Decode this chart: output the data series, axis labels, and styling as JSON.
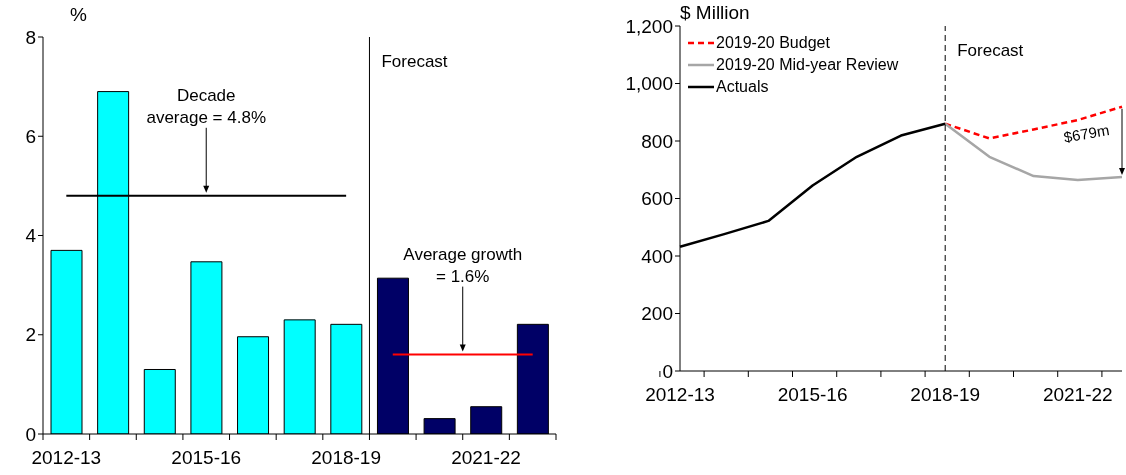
{
  "chart_data": [
    {
      "type": "bar",
      "ylabel": "%",
      "categories": [
        "2012-13",
        null,
        null,
        "2015-16",
        null,
        null,
        "2018-19",
        null,
        null,
        "2021-22",
        null
      ],
      "values": [
        3.7,
        6.9,
        1.3,
        3.47,
        1.96,
        2.3,
        2.21,
        3.14,
        0.31,
        0.55,
        2.21
      ],
      "colors": [
        "#00ffff",
        "#00ffff",
        "#00ffff",
        "#00ffff",
        "#00ffff",
        "#00ffff",
        "#00ffff",
        "#000066",
        "#000066",
        "#000066",
        "#000066"
      ],
      "ylim": [
        0,
        8
      ],
      "yticks": [
        0,
        2,
        4,
        6,
        8
      ],
      "ref_lines": [
        {
          "axis": "y",
          "value": 4.8,
          "label": "Decade\naverage = 4.8%",
          "color": "#000000"
        },
        {
          "axis": "y",
          "value": 1.6,
          "label": "Average growth\n= 1.6%",
          "color": "#ff0000"
        }
      ],
      "annotations": [
        "Forecast"
      ]
    },
    {
      "type": "line",
      "ylabel": "$ Million",
      "categories": [
        "2012-13",
        null,
        null,
        "2015-16",
        null,
        null,
        "2018-19",
        null,
        null,
        "2021-22",
        null
      ],
      "series": [
        {
          "name": "2019-20 Budget",
          "color": "#ff0000",
          "line_style": "dashed",
          "values": [
            null,
            null,
            null,
            null,
            null,
            null,
            860,
            809,
            840,
            873,
            919
          ]
        },
        {
          "name": "2019-20 Mid-year Review",
          "color": "#a6a6a6",
          "line_style": "solid",
          "values": [
            null,
            null,
            null,
            null,
            null,
            null,
            860,
            745,
            678,
            664,
            675
          ]
        },
        {
          "name": "Actuals",
          "color": "#000000",
          "line_style": "solid",
          "values": [
            432,
            476,
            522,
            645,
            745,
            819,
            860,
            null,
            null,
            null,
            null
          ]
        }
      ],
      "ylim": [
        0,
        1200
      ],
      "yticks": [
        0,
        200,
        400,
        600,
        800,
        {
          "value": 1000,
          "label": "1,000"
        },
        {
          "value": 1200,
          "label": "1,200"
        }
      ],
      "legend": "top left",
      "ref_lines": [
        {
          "axis": "x",
          "value": "2018-19",
          "label": "Forecast",
          "color": "#000000",
          "line_style": "dashed"
        }
      ],
      "annotations": [
        "$679m"
      ]
    }
  ]
}
